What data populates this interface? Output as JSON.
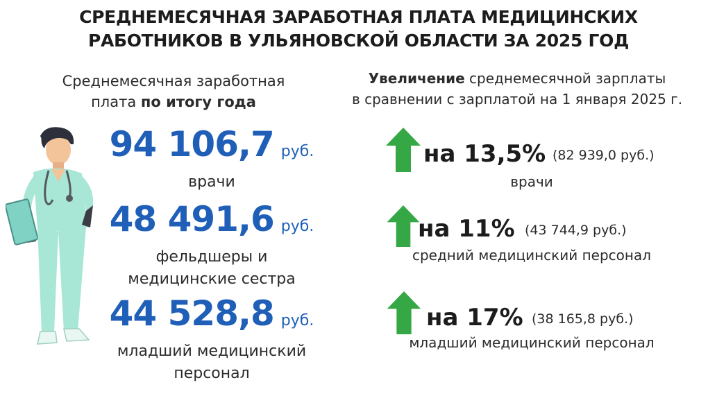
{
  "title": {
    "line1": "СРЕДНЕМЕСЯЧНАЯ ЗАРАБОТНАЯ ПЛАТА МЕДИЦИНСКИХ",
    "line2": "РАБОТНИКОВ В УЛЬЯНОВСКОЙ ОБЛАСТИ ЗА 2025 ГОД"
  },
  "left": {
    "heading_line1": "Среднемесячная заработная",
    "heading_line2_plain": "плата",
    "heading_line2_bold": "по итогу года",
    "unit": "руб.",
    "items": [
      {
        "value": "94 106,7",
        "label_line1": "врачи",
        "label_line2": ""
      },
      {
        "value": "48 491,6",
        "label_line1": "фельдшеры и",
        "label_line2": "медицинские сестра"
      },
      {
        "value": "44 528,8",
        "label_line1": "младший медицинский",
        "label_line2": "персонал"
      }
    ]
  },
  "right": {
    "heading_bold": "Увеличение",
    "heading_rest": "среднемесячной зарплаты",
    "heading_line2": "в сравнении с зарплатой на 1 января 2025 г.",
    "items": [
      {
        "percent": "на 13,5%",
        "amount": "(82 939,0 руб.)",
        "label": "врачи"
      },
      {
        "percent": "на 11%",
        "amount": "(43 744,9 руб.)",
        "label": "средний медицинский персонал"
      },
      {
        "percent": "на 17%",
        "amount": "(38 165,8 руб.)",
        "label": "младший медицинский персонал"
      }
    ]
  },
  "colors": {
    "value_blue": "#1f5fb8",
    "arrow_green": "#35a845",
    "scrubs_mint": "#a8e6d6"
  },
  "icons": [
    "doctor-illustration",
    "arrow-up-icon"
  ]
}
